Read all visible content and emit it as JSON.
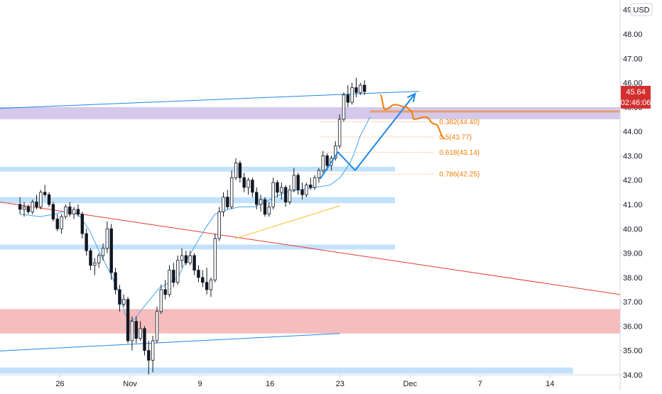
{
  "chart_data": {
    "type": "candlestick",
    "currency_label": "USD",
    "y_axis": {
      "range": [
        34.0,
        49.4
      ],
      "tick_labels": [
        "34.00",
        "35.00",
        "36.00",
        "37.00",
        "38.00",
        "39.00",
        "40.00",
        "41.00",
        "42.00",
        "43.00",
        "44.00",
        "45.00",
        "46.00",
        "47.00",
        "48.00",
        "49"
      ]
    },
    "x_axis": {
      "range": [
        -2,
        60
      ],
      "tick_labels": [
        {
          "x": 4,
          "label": "26"
        },
        {
          "x": 11,
          "label": "Nov"
        },
        {
          "x": 18,
          "label": "9"
        },
        {
          "x": 25,
          "label": "16"
        },
        {
          "x": 32,
          "label": "23"
        },
        {
          "x": 39,
          "label": "Dec"
        },
        {
          "x": 46,
          "label": "7"
        },
        {
          "x": 53,
          "label": "14"
        }
      ]
    },
    "current_price": {
      "value": 45.64,
      "label": "45.64",
      "countdown": "02:46:06"
    },
    "candles": [
      [
        41.0,
        41.3,
        40.6,
        40.8
      ],
      [
        40.8,
        41.1,
        40.5,
        40.9
      ],
      [
        40.9,
        41.0,
        40.6,
        40.7
      ],
      [
        40.7,
        41.2,
        40.6,
        41.1
      ],
      [
        41.1,
        41.4,
        40.8,
        40.9
      ],
      [
        40.9,
        41.6,
        40.8,
        41.5
      ],
      [
        41.5,
        41.8,
        41.3,
        41.4
      ],
      [
        41.4,
        41.5,
        40.9,
        41.0
      ],
      [
        41.0,
        41.1,
        40.3,
        40.4
      ],
      [
        40.4,
        40.6,
        39.9,
        40.0
      ],
      [
        40.0,
        40.6,
        39.8,
        40.5
      ],
      [
        40.5,
        41.0,
        40.4,
        40.9
      ],
      [
        40.9,
        41.1,
        40.5,
        40.6
      ],
      [
        40.6,
        40.9,
        40.4,
        40.8
      ],
      [
        40.8,
        41.0,
        40.5,
        40.6
      ],
      [
        40.6,
        40.7,
        39.6,
        39.8
      ],
      [
        39.8,
        40.0,
        38.9,
        39.1
      ],
      [
        39.1,
        39.2,
        38.3,
        38.5
      ],
      [
        38.5,
        38.8,
        38.1,
        38.6
      ],
      [
        38.6,
        39.0,
        38.4,
        38.9
      ],
      [
        38.9,
        39.4,
        38.7,
        39.2
      ],
      [
        39.2,
        40.3,
        39.0,
        40.0
      ],
      [
        40.0,
        40.2,
        37.9,
        38.2
      ],
      [
        38.2,
        38.4,
        37.3,
        37.5
      ],
      [
        37.5,
        37.7,
        36.6,
        36.9
      ],
      [
        36.9,
        37.3,
        36.8,
        37.1
      ],
      [
        37.1,
        37.2,
        35.3,
        35.4
      ],
      [
        35.4,
        36.4,
        35.0,
        36.2
      ],
      [
        36.2,
        36.4,
        35.3,
        35.5
      ],
      [
        35.5,
        36.2,
        35.4,
        35.9
      ],
      [
        35.9,
        36.0,
        34.8,
        35.0
      ],
      [
        35.0,
        35.4,
        34.0,
        34.6
      ],
      [
        34.6,
        35.6,
        34.1,
        35.4
      ],
      [
        35.4,
        36.8,
        35.3,
        36.6
      ],
      [
        36.6,
        37.7,
        36.5,
        37.5
      ],
      [
        37.5,
        37.9,
        37.1,
        37.3
      ],
      [
        37.3,
        38.5,
        37.2,
        38.3
      ],
      [
        38.3,
        38.6,
        37.6,
        37.8
      ],
      [
        37.8,
        38.9,
        37.7,
        38.7
      ],
      [
        38.7,
        39.2,
        38.4,
        38.9
      ],
      [
        38.9,
        39.1,
        38.5,
        38.6
      ],
      [
        38.6,
        39.1,
        38.5,
        38.9
      ],
      [
        38.9,
        39.0,
        38.1,
        38.3
      ],
      [
        38.3,
        38.5,
        37.8,
        38.0
      ],
      [
        38.0,
        38.3,
        37.6,
        37.8
      ],
      [
        37.8,
        38.4,
        37.3,
        37.5
      ],
      [
        37.5,
        38.0,
        37.2,
        37.9
      ],
      [
        37.9,
        39.8,
        37.8,
        39.6
      ],
      [
        39.6,
        40.9,
        39.5,
        40.7
      ],
      [
        40.7,
        41.5,
        40.5,
        41.3
      ],
      [
        41.3,
        41.6,
        40.8,
        40.9
      ],
      [
        40.9,
        42.4,
        40.8,
        42.1
      ],
      [
        42.1,
        42.9,
        42.0,
        42.7
      ],
      [
        42.7,
        42.8,
        41.9,
        42.1
      ],
      [
        42.1,
        42.3,
        41.5,
        41.7
      ],
      [
        41.7,
        42.1,
        41.4,
        42.0
      ],
      [
        42.0,
        42.1,
        41.3,
        41.5
      ],
      [
        41.5,
        41.7,
        40.8,
        41.0
      ],
      [
        41.0,
        41.4,
        40.7,
        41.2
      ],
      [
        41.2,
        41.3,
        40.5,
        40.6
      ],
      [
        40.6,
        41.1,
        40.5,
        40.9
      ],
      [
        40.9,
        42.1,
        40.8,
        41.9
      ],
      [
        41.9,
        42.0,
        41.3,
        41.5
      ],
      [
        41.5,
        41.9,
        41.2,
        41.7
      ],
      [
        41.7,
        41.8,
        40.9,
        41.1
      ],
      [
        41.1,
        41.8,
        41.0,
        41.6
      ],
      [
        41.6,
        42.5,
        41.5,
        42.2
      ],
      [
        42.2,
        42.3,
        41.4,
        41.6
      ],
      [
        41.6,
        41.9,
        41.2,
        41.4
      ],
      [
        41.4,
        41.9,
        41.3,
        41.8
      ],
      [
        41.8,
        42.1,
        41.6,
        41.7
      ],
      [
        41.7,
        42.2,
        41.6,
        42.1
      ],
      [
        42.1,
        42.5,
        41.9,
        42.4
      ],
      [
        42.4,
        43.2,
        42.3,
        43.0
      ],
      [
        43.0,
        43.1,
        42.4,
        42.6
      ],
      [
        42.6,
        43.0,
        42.4,
        42.9
      ],
      [
        42.9,
        43.6,
        42.8,
        43.4
      ],
      [
        43.4,
        44.7,
        43.3,
        44.5
      ],
      [
        44.5,
        45.6,
        44.4,
        45.5
      ],
      [
        45.5,
        45.9,
        45.0,
        45.2
      ],
      [
        45.2,
        46.0,
        45.1,
        45.8
      ],
      [
        45.8,
        46.2,
        45.4,
        45.6
      ],
      [
        45.6,
        46.0,
        45.5,
        45.9
      ],
      [
        45.9,
        46.1,
        45.5,
        45.64
      ]
    ],
    "ma_line": [
      [
        0.0,
        40.6
      ],
      [
        2.0,
        40.5
      ],
      [
        3.5,
        40.6
      ],
      [
        5.0,
        40.8
      ],
      [
        6.0,
        40.5
      ],
      [
        7.0,
        39.9
      ],
      [
        8.0,
        39.0
      ],
      [
        9.0,
        38.2
      ],
      [
        10.0,
        37.3
      ],
      [
        10.5,
        36.5
      ],
      [
        11.0,
        36.2
      ],
      [
        11.5,
        36.3
      ],
      [
        12.0,
        36.6
      ],
      [
        13.0,
        37.1
      ],
      [
        14.0,
        37.6
      ],
      [
        15.0,
        37.8
      ],
      [
        15.8,
        38.0
      ],
      [
        16.5,
        38.6
      ],
      [
        17.5,
        39.3
      ],
      [
        18.5,
        40.0
      ],
      [
        19.5,
        40.6
      ],
      [
        20.8,
        40.8
      ],
      [
        22.0,
        40.9
      ],
      [
        23.5,
        40.9
      ],
      [
        25.0,
        41.2
      ],
      [
        26.5,
        41.5
      ],
      [
        28.0,
        41.6
      ],
      [
        29.5,
        41.7
      ],
      [
        31.0,
        41.8
      ],
      [
        32.0,
        42.1
      ],
      [
        33.0,
        42.7
      ],
      [
        33.5,
        43.2
      ],
      [
        34.0,
        43.8
      ],
      [
        34.5,
        44.2
      ],
      [
        35.0,
        44.6
      ]
    ],
    "zones": [
      {
        "type": "resistance",
        "from": 44.5,
        "to": 45.0,
        "color": "#b39ddb"
      },
      {
        "type": "level",
        "from": 42.35,
        "to": 42.55,
        "color": "#90caf9"
      },
      {
        "type": "level",
        "from": 41.05,
        "to": 41.3,
        "color": "#90caf9"
      },
      {
        "type": "level",
        "from": 39.15,
        "to": 39.35,
        "color": "#90caf9"
      },
      {
        "type": "demand",
        "from": 35.7,
        "to": 36.7,
        "color": "#ef9a9a"
      },
      {
        "type": "level",
        "from": 34.05,
        "to": 34.3,
        "color": "#90caf9"
      }
    ],
    "fib_levels": [
      {
        "ratio": "0.382",
        "label": "0.382(44.40)",
        "price": 44.4
      },
      {
        "ratio": "0.5",
        "label": "0.5(43.77)",
        "price": 43.77
      },
      {
        "ratio": "0.618",
        "label": "0.618(43.14)",
        "price": 43.14
      },
      {
        "ratio": "0.786",
        "label": "0.786(42.25)",
        "price": 42.25
      }
    ],
    "trend_lines": [
      {
        "name": "upper-channel",
        "color": "#1e88e5",
        "points": [
          [
            -2,
            44.95
          ],
          [
            39.9,
            45.65
          ]
        ]
      },
      {
        "name": "lower-channel",
        "color": "#1e88e5",
        "points": [
          [
            -2,
            34.98
          ],
          [
            32.0,
            35.7
          ]
        ]
      },
      {
        "name": "down-trend",
        "color": "#e53935",
        "points": [
          [
            -2,
            41.1
          ],
          [
            60,
            37.3
          ]
        ]
      },
      {
        "name": "support-trend",
        "color": "#fbc02d",
        "points": [
          [
            21.5,
            39.6
          ],
          [
            32.0,
            40.95
          ]
        ]
      }
    ],
    "projections": {
      "blue_path": [
        [
          30.0,
          42.05
        ],
        [
          31.8,
          43.15
        ],
        [
          33.5,
          42.4
        ],
        [
          39.5,
          45.55
        ]
      ],
      "orange_path": [
        [
          36.0,
          45.5
        ],
        [
          36.5,
          44.9
        ],
        [
          37.5,
          45.1
        ],
        [
          38.6,
          45.0
        ],
        [
          39.1,
          44.85
        ],
        [
          39.4,
          44.5
        ],
        [
          40.5,
          44.6
        ],
        [
          41.5,
          44.3
        ],
        [
          42.5,
          43.7
        ]
      ]
    },
    "colors": {
      "up": "#26a69a",
      "down": "#ef5350",
      "candle_display": "#131722",
      "ma": "#42a5f5",
      "fib": "#f57c00",
      "price_label_bg": "#d32f2f"
    }
  }
}
